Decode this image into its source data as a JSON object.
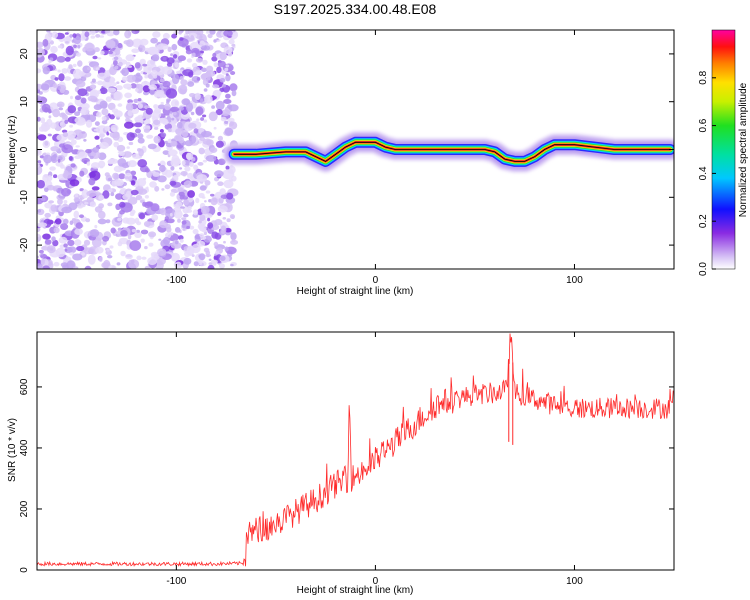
{
  "figure_title": "S197.2025.334.00.48.E08",
  "colorbar": {
    "label": "Normalized spectral amplitude",
    "ticks": [
      0.0,
      0.2,
      0.4,
      0.6,
      0.8
    ],
    "tick_labels": [
      "0.0",
      "0.2",
      "0.4",
      "0.6",
      "0.8"
    ]
  },
  "chart_data": [
    {
      "type": "heatmap",
      "title": "",
      "xlabel": "Height of straight line (km)",
      "ylabel": "Frequency (Hz)",
      "xlim": [
        -170,
        150
      ],
      "ylim": [
        -25,
        25
      ],
      "xticks": [
        -100,
        0,
        100
      ],
      "xtick_labels": [
        "-100",
        "0",
        "100"
      ],
      "yticks": [
        -20,
        -10,
        0,
        10,
        20
      ],
      "ytick_labels": [
        "-20",
        "-10",
        "0",
        "10",
        "20"
      ],
      "noise_region_x": [
        -170,
        -71
      ],
      "signal_ridge": {
        "description": "narrow Doppler line near 0 Hz",
        "x": [
          -71,
          -60,
          -45,
          -35,
          -25,
          -20,
          -15,
          -10,
          0,
          5,
          10,
          20,
          40,
          55,
          60,
          65,
          70,
          75,
          80,
          85,
          90,
          100,
          110,
          120,
          140,
          148
        ],
        "freq": [
          -1,
          -1,
          -0.5,
          -0.5,
          -2.5,
          -1,
          0.5,
          1.5,
          1.5,
          0.5,
          0,
          0,
          0,
          0,
          -0.5,
          -2,
          -2.5,
          -2.5,
          -1.5,
          0,
          1,
          1,
          0.5,
          0,
          0,
          0
        ]
      }
    },
    {
      "type": "line",
      "title": "",
      "xlabel": "Height of straight line (km)",
      "ylabel": "SNR (10 * v/v)",
      "xlim": [
        -170,
        150
      ],
      "ylim": [
        0,
        780
      ],
      "xticks": [
        -100,
        0,
        100
      ],
      "xtick_labels": [
        "-100",
        "0",
        "100"
      ],
      "yticks": [
        0,
        200,
        400,
        600
      ],
      "ytick_labels": [
        "0",
        "200",
        "400",
        "600"
      ],
      "series": [
        {
          "name": "SNR",
          "color": "#ff2a2a",
          "x": [
            -170,
            -150,
            -120,
            -100,
            -80,
            -66,
            -64,
            -60,
            -50,
            -40,
            -30,
            -20,
            -14,
            -13,
            -12,
            -5,
            0,
            10,
            20,
            30,
            40,
            50,
            60,
            66,
            68,
            70,
            80,
            90,
            100,
            110,
            120,
            130,
            140,
            150
          ],
          "y": [
            20,
            20,
            20,
            20,
            20,
            22,
            120,
            130,
            150,
            190,
            230,
            280,
            300,
            560,
            300,
            330,
            360,
            420,
            480,
            540,
            560,
            575,
            580,
            590,
            780,
            580,
            560,
            540,
            530,
            530,
            530,
            530,
            530,
            530
          ]
        }
      ]
    }
  ]
}
